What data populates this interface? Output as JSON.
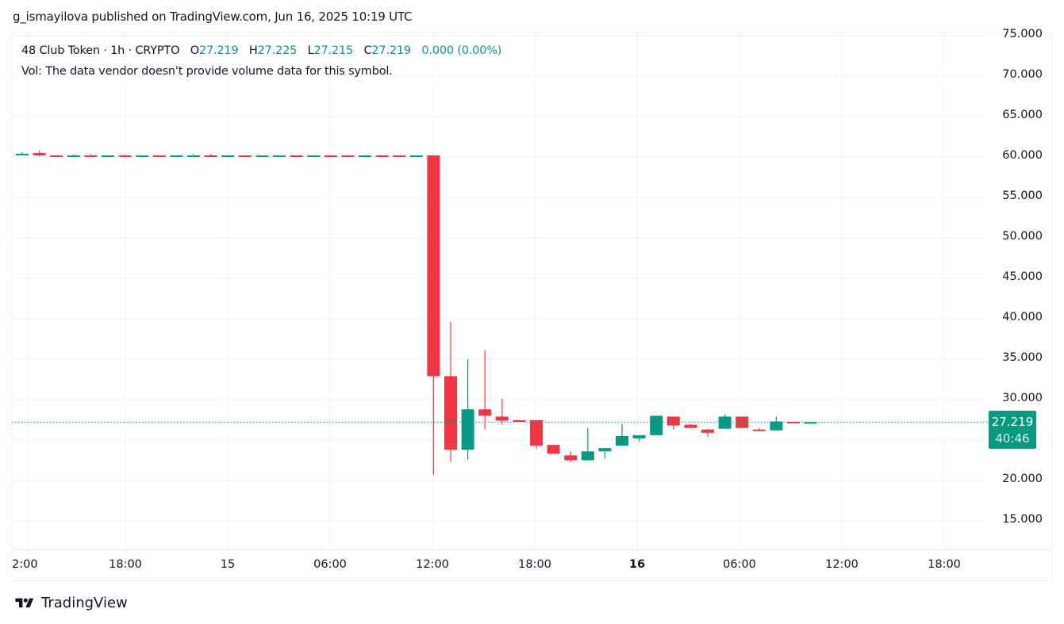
{
  "header": {
    "published_line": "g_ismayilova published on TradingView.com, Jun 16, 2025 10:19 UTC"
  },
  "legend": {
    "symbol_line": "48 Club Token · 1h · CRYPTO",
    "open_label": "O",
    "open_value": "27.219",
    "high_label": "H",
    "high_value": "27.225",
    "low_label": "L",
    "low_value": "27.215",
    "close_label": "C",
    "close_value": "27.219",
    "change": "0.000 (0.00%)",
    "volume_line": "Vol: The data vendor doesn't provide volume data for this symbol."
  },
  "price_tag": {
    "price": "27.219",
    "countdown": "40:46",
    "color": "#089981"
  },
  "footer": {
    "brand": "TradingView"
  },
  "colors": {
    "up": "#089981",
    "down": "#f23645",
    "grid": "#f0f1f4",
    "text": "#131722"
  },
  "chart_data": {
    "type": "candlestick",
    "title": "48 Club Token · 1h · CRYPTO",
    "xlabel": "",
    "ylabel": "",
    "ylim": [
      12,
      76
    ],
    "grid": true,
    "legend_position": "top-left",
    "y_ticks": [
      "75.000",
      "70.000",
      "65.000",
      "60.000",
      "55.000",
      "50.000",
      "45.000",
      "40.000",
      "35.000",
      "30.000",
      "20.000",
      "15.000"
    ],
    "x_ticks": [
      {
        "label": "2:00",
        "bold": false
      },
      {
        "label": "18:00",
        "bold": false
      },
      {
        "label": "15",
        "bold": false
      },
      {
        "label": "06:00",
        "bold": false
      },
      {
        "label": "12:00",
        "bold": false
      },
      {
        "label": "18:00",
        "bold": false
      },
      {
        "label": "16",
        "bold": true
      },
      {
        "label": "06:00",
        "bold": false
      },
      {
        "label": "12:00",
        "bold": false
      },
      {
        "label": "18:00",
        "bold": false
      }
    ],
    "last_price": 27.219,
    "candles": [
      {
        "t": "Jun 14 12:00",
        "o": 60.2,
        "h": 60.6,
        "l": 60.2,
        "c": 60.4
      },
      {
        "t": "Jun 14 13:00",
        "o": 60.5,
        "h": 60.8,
        "l": 60.1,
        "c": 60.2
      },
      {
        "t": "Jun 14 14:00",
        "o": 60.2,
        "h": 60.2,
        "l": 60.1,
        "c": 60.15
      },
      {
        "t": "Jun 14 15:00",
        "o": 60.15,
        "h": 60.3,
        "l": 60.1,
        "c": 60.2
      },
      {
        "t": "Jun 14 16:00",
        "o": 60.2,
        "h": 60.35,
        "l": 60.1,
        "c": 60.15
      },
      {
        "t": "Jun 14 17:00",
        "o": 60.15,
        "h": 60.2,
        "l": 60.1,
        "c": 60.2
      },
      {
        "t": "Jun 14 18:00",
        "o": 60.2,
        "h": 60.3,
        "l": 60.1,
        "c": 60.15
      },
      {
        "t": "Jun 14 19:00",
        "o": 60.15,
        "h": 60.2,
        "l": 60.1,
        "c": 60.2
      },
      {
        "t": "Jun 14 20:00",
        "o": 60.2,
        "h": 60.2,
        "l": 60.1,
        "c": 60.15
      },
      {
        "t": "Jun 14 21:00",
        "o": 60.15,
        "h": 60.2,
        "l": 60.1,
        "c": 60.2
      },
      {
        "t": "Jun 14 22:00",
        "o": 60.15,
        "h": 60.35,
        "l": 60.1,
        "c": 60.2
      },
      {
        "t": "Jun 14 23:00",
        "o": 60.2,
        "h": 60.35,
        "l": 60.1,
        "c": 60.15
      },
      {
        "t": "Jun 15 00:00",
        "o": 60.15,
        "h": 60.2,
        "l": 60.1,
        "c": 60.2
      },
      {
        "t": "Jun 15 01:00",
        "o": 60.2,
        "h": 60.2,
        "l": 60.1,
        "c": 60.15
      },
      {
        "t": "Jun 15 02:00",
        "o": 60.15,
        "h": 60.2,
        "l": 60.1,
        "c": 60.2
      },
      {
        "t": "Jun 15 03:00",
        "o": 60.15,
        "h": 60.2,
        "l": 60.1,
        "c": 60.2
      },
      {
        "t": "Jun 15 04:00",
        "o": 60.2,
        "h": 60.2,
        "l": 60.1,
        "c": 60.15
      },
      {
        "t": "Jun 15 05:00",
        "o": 60.15,
        "h": 60.2,
        "l": 60.1,
        "c": 60.2
      },
      {
        "t": "Jun 15 06:00",
        "o": 60.2,
        "h": 60.2,
        "l": 60.1,
        "c": 60.15
      },
      {
        "t": "Jun 15 07:00",
        "o": 60.2,
        "h": 60.2,
        "l": 60.1,
        "c": 60.15
      },
      {
        "t": "Jun 15 08:00",
        "o": 60.15,
        "h": 60.2,
        "l": 60.1,
        "c": 60.2
      },
      {
        "t": "Jun 15 09:00",
        "o": 60.2,
        "h": 60.2,
        "l": 60.1,
        "c": 60.15
      },
      {
        "t": "Jun 15 10:00",
        "o": 60.2,
        "h": 60.2,
        "l": 60.1,
        "c": 60.15
      },
      {
        "t": "Jun 15 11:00",
        "o": 60.15,
        "h": 60.2,
        "l": 60.1,
        "c": 60.2
      },
      {
        "t": "Jun 15 12:00",
        "o": 60.2,
        "h": 60.2,
        "l": 20.7,
        "c": 32.9
      },
      {
        "t": "Jun 15 13:00",
        "o": 32.9,
        "h": 39.6,
        "l": 22.3,
        "c": 23.8
      },
      {
        "t": "Jun 15 14:00",
        "o": 23.8,
        "h": 35.0,
        "l": 22.6,
        "c": 28.8
      },
      {
        "t": "Jun 15 15:00",
        "o": 28.8,
        "h": 36.1,
        "l": 26.3,
        "c": 28.0
      },
      {
        "t": "Jun 15 16:00",
        "o": 27.9,
        "h": 30.1,
        "l": 26.9,
        "c": 27.4
      },
      {
        "t": "Jun 15 17:00",
        "o": 27.45,
        "h": 27.5,
        "l": 27.3,
        "c": 27.35
      },
      {
        "t": "Jun 15 18:00",
        "o": 27.45,
        "h": 27.45,
        "l": 23.9,
        "c": 24.3
      },
      {
        "t": "Jun 15 19:00",
        "o": 24.4,
        "h": 24.4,
        "l": 23.3,
        "c": 23.3
      },
      {
        "t": "Jun 15 20:00",
        "o": 23.1,
        "h": 23.6,
        "l": 22.3,
        "c": 22.5
      },
      {
        "t": "Jun 15 21:00",
        "o": 22.5,
        "h": 26.5,
        "l": 22.5,
        "c": 23.6
      },
      {
        "t": "Jun 15 22:00",
        "o": 23.6,
        "h": 24.0,
        "l": 22.7,
        "c": 24.0
      },
      {
        "t": "Jun 15 23:00",
        "o": 24.3,
        "h": 27.0,
        "l": 24.3,
        "c": 25.5
      },
      {
        "t": "Jun 16 00:00",
        "o": 25.2,
        "h": 25.6,
        "l": 24.8,
        "c": 25.6
      },
      {
        "t": "Jun 16 01:00",
        "o": 25.6,
        "h": 28.0,
        "l": 25.6,
        "c": 28.0
      },
      {
        "t": "Jun 16 02:00",
        "o": 27.9,
        "h": 27.9,
        "l": 26.3,
        "c": 26.8
      },
      {
        "t": "Jun 16 03:00",
        "o": 26.9,
        "h": 27.0,
        "l": 26.5,
        "c": 26.5
      },
      {
        "t": "Jun 16 04:00",
        "o": 26.3,
        "h": 26.4,
        "l": 25.4,
        "c": 25.9
      },
      {
        "t": "Jun 16 05:00",
        "o": 26.4,
        "h": 28.2,
        "l": 26.4,
        "c": 27.9
      },
      {
        "t": "Jun 16 06:00",
        "o": 27.9,
        "h": 27.9,
        "l": 26.5,
        "c": 26.5
      },
      {
        "t": "Jun 16 07:00",
        "o": 26.3,
        "h": 26.5,
        "l": 26.1,
        "c": 26.1
      },
      {
        "t": "Jun 16 08:00",
        "o": 26.2,
        "h": 27.9,
        "l": 26.2,
        "c": 27.3
      },
      {
        "t": "Jun 16 09:00",
        "o": 27.26,
        "h": 27.28,
        "l": 27.2,
        "c": 27.22
      },
      {
        "t": "Jun 16 10:00",
        "o": 27.219,
        "h": 27.225,
        "l": 27.215,
        "c": 27.219
      }
    ]
  }
}
